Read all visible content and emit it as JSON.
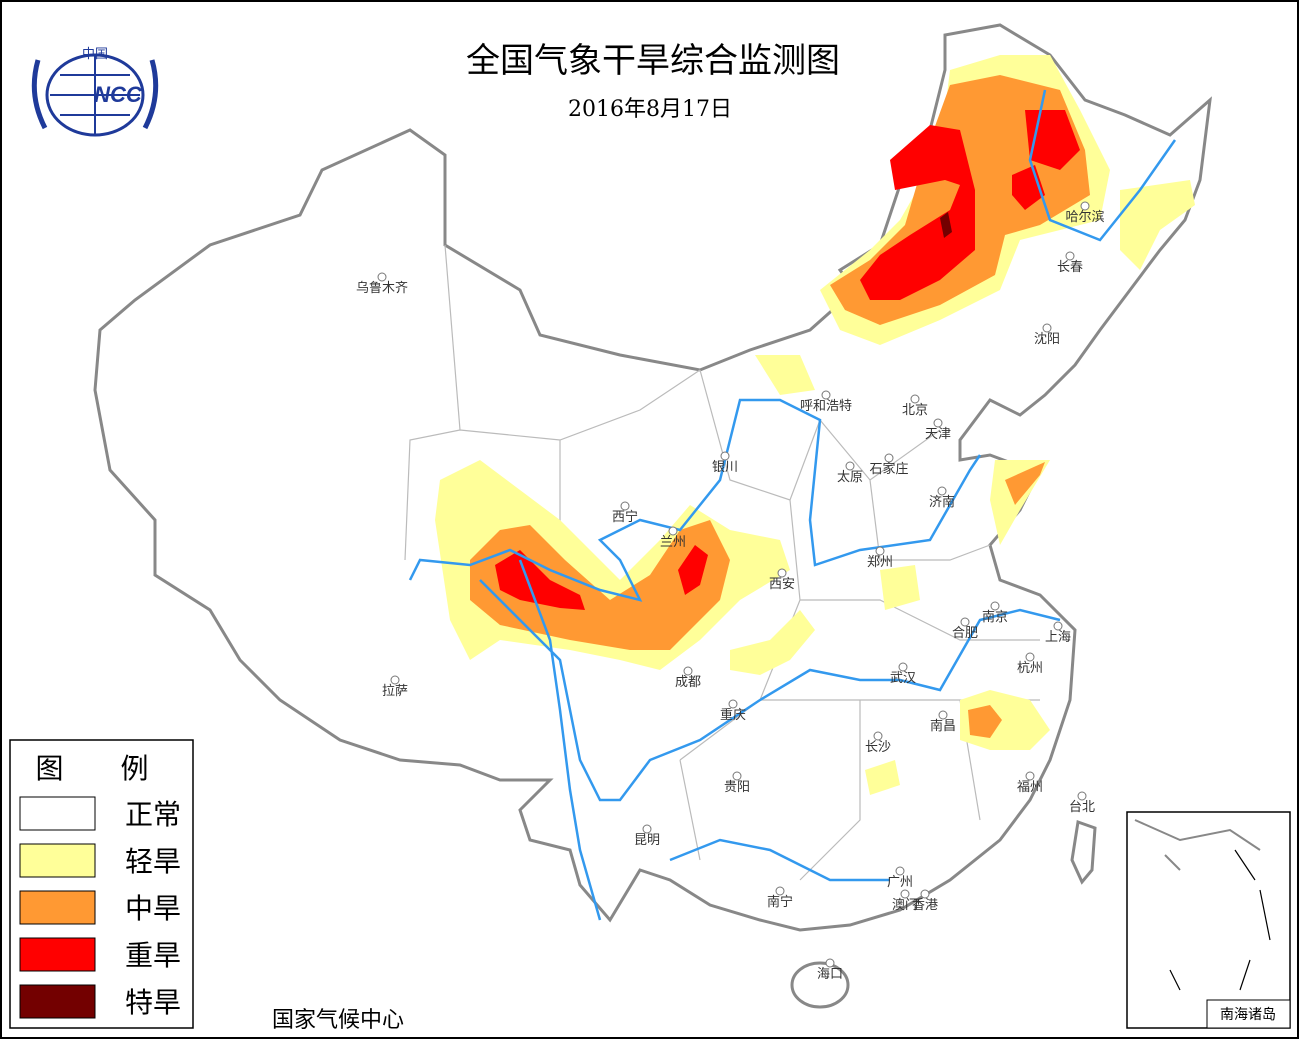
{
  "header": {
    "title": "全国气象干旱综合监测图",
    "date": "2016年8月17日"
  },
  "logo": {
    "top": "中国",
    "text": "NCC"
  },
  "cities": [
    "乌鲁木齐",
    "哈尔滨",
    "长春",
    "沈阳",
    "呼和浩特",
    "北京",
    "天津",
    "银川",
    "石家庄",
    "太原",
    "济南",
    "西宁",
    "兰州",
    "郑州",
    "西安",
    "南京",
    "合肥",
    "上海",
    "成都",
    "拉萨",
    "武汉",
    "杭州",
    "重庆",
    "南昌",
    "长沙",
    "贵阳",
    "福州",
    "台北",
    "昆明",
    "广州",
    "南宁",
    "澳门",
    "香港",
    "海口"
  ],
  "legend": {
    "title": "图 例",
    "items": [
      {
        "label": "正常",
        "color": "#ffffff"
      },
      {
        "label": "轻旱",
        "color": "#ffff99"
      },
      {
        "label": "中旱",
        "color": "#ff9933"
      },
      {
        "label": "重旱",
        "color": "#ff0000"
      },
      {
        "label": "特旱",
        "color": "#730000"
      }
    ]
  },
  "footer": "国家气候中心",
  "inset": {
    "label": "南海诸岛"
  }
}
